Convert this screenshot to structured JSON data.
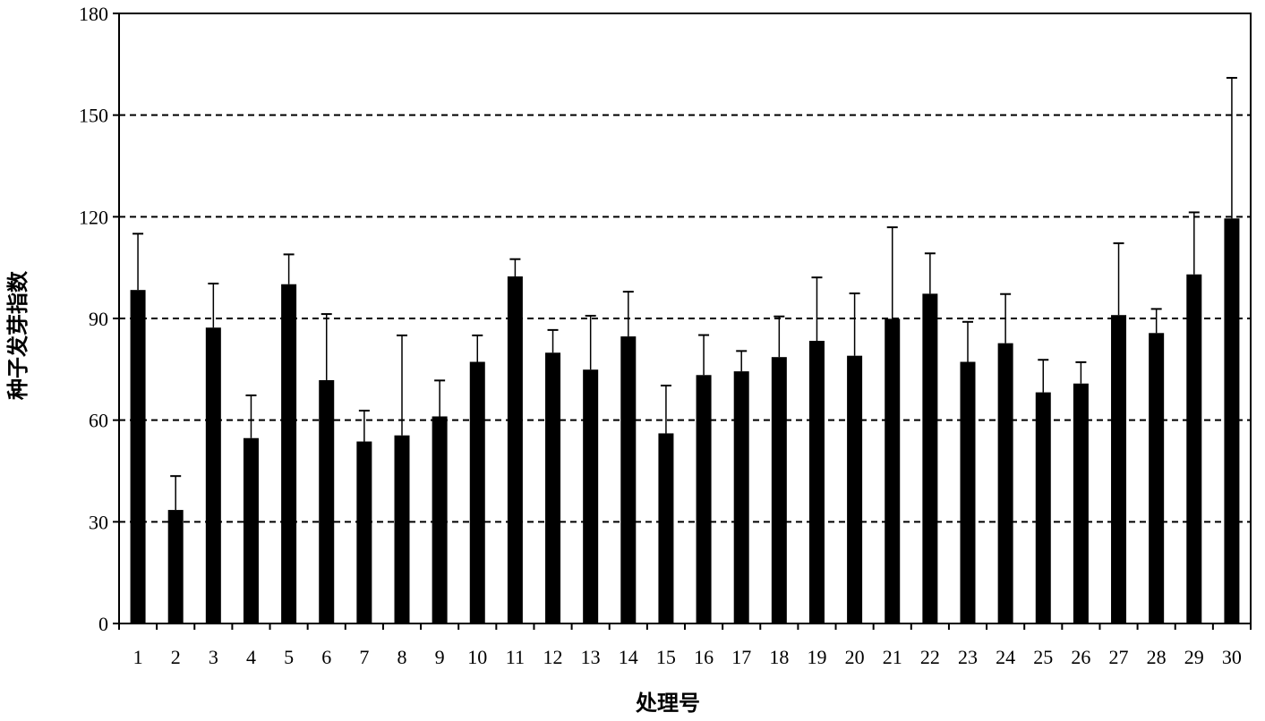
{
  "chart_data": {
    "type": "bar",
    "title": "",
    "xlabel": "处理号",
    "ylabel": "种子发芽指数",
    "ylim": [
      0,
      180
    ],
    "yticks": [
      0,
      30,
      60,
      90,
      120,
      150,
      180
    ],
    "ytick_labels": [
      "0",
      "30",
      "60",
      "90",
      "120",
      "150",
      "180"
    ],
    "grid": "horizontal dashed at 30, 60, 90, 120, 150",
    "legend": "none",
    "categories": [
      "1",
      "2",
      "3",
      "4",
      "5",
      "6",
      "7",
      "8",
      "9",
      "10",
      "11",
      "12",
      "13",
      "14",
      "15",
      "16",
      "17",
      "18",
      "19",
      "20",
      "21",
      "22",
      "23",
      "24",
      "25",
      "26",
      "27",
      "28",
      "29",
      "30"
    ],
    "values": [
      98.4,
      33.5,
      87.3,
      54.7,
      100.1,
      71.8,
      53.7,
      55.5,
      61.1,
      77.2,
      102.4,
      79.9,
      74.9,
      84.7,
      56.1,
      73.3,
      74.4,
      78.6,
      83.4,
      79.0,
      89.9,
      97.3,
      77.2,
      82.7,
      68.2,
      70.8,
      91.0,
      85.7,
      103.0,
      119.5
    ],
    "error_upper": [
      16.6,
      10.0,
      13.0,
      12.6,
      8.8,
      19.5,
      9.1,
      29.5,
      10.6,
      7.8,
      5.1,
      6.7,
      15.9,
      13.2,
      14.1,
      11.8,
      6.0,
      12.0,
      18.7,
      18.4,
      27.0,
      11.9,
      11.8,
      14.5,
      9.6,
      6.3,
      21.2,
      7.1,
      18.3,
      41.5
    ],
    "colors": {
      "bar": "#000000",
      "grid": "#000000",
      "axis": "#000000"
    }
  }
}
